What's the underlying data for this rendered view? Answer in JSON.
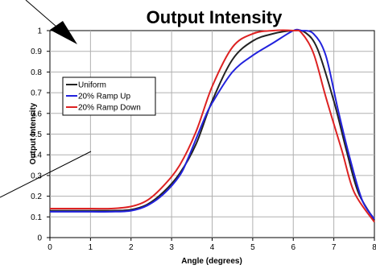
{
  "chart_data": {
    "type": "line",
    "title": "Output Intensity",
    "xlabel": "Angle (degrees)",
    "ylabel": "Output Intensity",
    "xlim": [
      0,
      8
    ],
    "ylim": [
      0,
      1
    ],
    "x_ticks": [
      0,
      1,
      2,
      3,
      4,
      5,
      6,
      7,
      8
    ],
    "y_ticks": [
      0,
      0.1,
      0.2,
      0.3,
      0.4,
      0.5,
      0.6,
      0.7,
      0.8,
      0.9,
      1
    ],
    "x_tick_labels": [
      "0",
      "1",
      "2",
      "3",
      "4",
      "5",
      "6",
      "7",
      "8"
    ],
    "y_tick_labels": [
      "0",
      "0.1",
      "0.2",
      "0.3",
      "0.4",
      "0.5",
      "0.6",
      "0.7",
      "0.8",
      "0.9",
      "1"
    ],
    "grid": true,
    "legend_position": "middle-left",
    "series": [
      {
        "name": "Uniform",
        "color": "#222222",
        "x": [
          0,
          1,
          1.5,
          2,
          2.4,
          2.8,
          3.2,
          3.6,
          4,
          4.5,
          5,
          5.5,
          6,
          6.3,
          6.6,
          7,
          7.3,
          7.6,
          8
        ],
        "y": [
          0.13,
          0.13,
          0.13,
          0.135,
          0.16,
          0.22,
          0.31,
          0.45,
          0.66,
          0.86,
          0.95,
          0.985,
          1.0,
          0.99,
          0.91,
          0.66,
          0.43,
          0.22,
          0.085
        ]
      },
      {
        "name": "20% Ramp Up",
        "color": "#2222dd",
        "x": [
          0,
          1,
          1.5,
          2,
          2.4,
          2.8,
          3.2,
          3.4,
          3.8,
          4,
          4.5,
          5,
          5.5,
          6,
          6.2,
          6.5,
          6.8,
          7.1,
          7.4,
          7.7,
          8
        ],
        "y": [
          0.125,
          0.125,
          0.125,
          0.13,
          0.155,
          0.21,
          0.3,
          0.38,
          0.57,
          0.65,
          0.8,
          0.88,
          0.94,
          1.0,
          1.0,
          0.985,
          0.88,
          0.62,
          0.38,
          0.18,
          0.09
        ]
      },
      {
        "name": "20% Ramp Down",
        "color": "#dd2222",
        "x": [
          0,
          1,
          1.5,
          2,
          2.4,
          2.8,
          3.2,
          3.6,
          4,
          4.5,
          5,
          5.5,
          6,
          6.2,
          6.5,
          6.8,
          7.2,
          7.5,
          8
        ],
        "y": [
          0.14,
          0.14,
          0.14,
          0.15,
          0.18,
          0.25,
          0.35,
          0.51,
          0.73,
          0.92,
          0.985,
          1.0,
          1.0,
          0.99,
          0.89,
          0.68,
          0.42,
          0.22,
          0.075
        ]
      }
    ]
  }
}
